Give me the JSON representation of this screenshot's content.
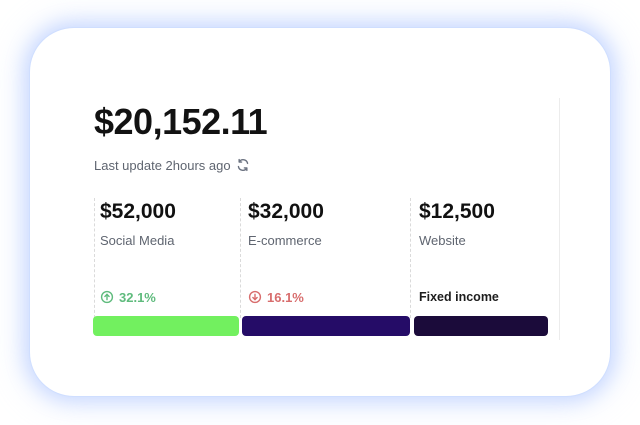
{
  "summary": {
    "amount": "$20,152.11",
    "last_update": "Last update 2hours ago"
  },
  "sources": [
    {
      "amount": "$52,000",
      "label": "Social Media",
      "trend": "32.1%",
      "trend_direction": "up",
      "color": "#72f05f"
    },
    {
      "amount": "$32,000",
      "label": "E-commerce",
      "trend": "16.1%",
      "trend_direction": "down",
      "color": "#250c67"
    },
    {
      "amount": "$12,500",
      "label": "Website",
      "footer_label": "Fixed income",
      "color": "#1b0b3a"
    }
  ],
  "icons": {
    "refresh": "refresh-icon",
    "trend_up": "arrow-up-circle-icon",
    "trend_down": "arrow-down-circle-icon"
  },
  "colors": {
    "positive": "#5fbb7d",
    "negative": "#d86d6d",
    "muted_text": "#5f6570"
  }
}
